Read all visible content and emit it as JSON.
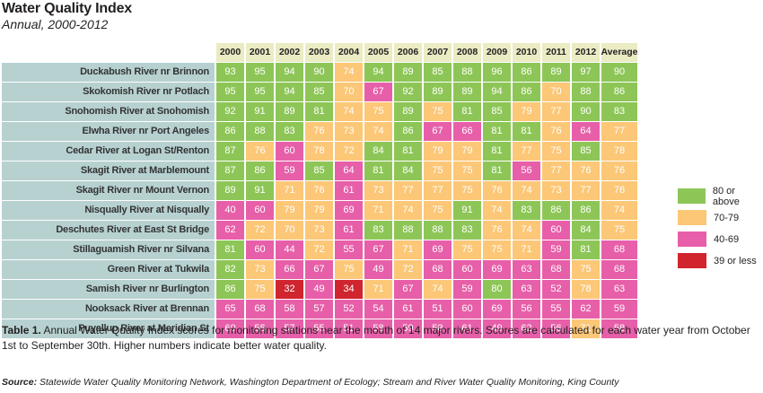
{
  "title": "Water Quality Index",
  "subtitle": "Annual, 2000-2012",
  "colors": {
    "good": "#8dc657",
    "fair": "#fcc777",
    "poor": "#e75fa9",
    "bad": "#d0252f"
  },
  "legend": [
    {
      "label": "80 or above",
      "key": "good"
    },
    {
      "label": "70-79",
      "key": "fair"
    },
    {
      "label": "40-69",
      "key": "poor"
    },
    {
      "label": "39 or less",
      "key": "bad"
    }
  ],
  "caption": {
    "label": "Table 1.",
    "text": " Annual Water Quality Index scores for monitoring stations near the mouth of 14 major rivers. Scores are calculated for each water year from October 1st to September 30th. Higher numbers indicate better water quality."
  },
  "source": {
    "label": "Source:",
    "text": " Statewide Water Quality Monitoring Network, Washington Department of Ecology; Stream and River Water Quality Monitoring, King County"
  },
  "chart_data": {
    "type": "heatmap",
    "columns": [
      "2000",
      "2001",
      "2002",
      "2003",
      "2004",
      "2005",
      "2006",
      "2007",
      "2008",
      "2009",
      "2010",
      "2011",
      "2012",
      "Average"
    ],
    "rows": [
      {
        "name": "Duckabush River nr Brinnon",
        "values": [
          93,
          95,
          94,
          90,
          74,
          94,
          89,
          85,
          88,
          96,
          86,
          89,
          97,
          90
        ]
      },
      {
        "name": "Skokomish River nr Potlach",
        "values": [
          95,
          95,
          94,
          85,
          70,
          67,
          92,
          89,
          89,
          94,
          86,
          70,
          88,
          86
        ]
      },
      {
        "name": "Snohomish River at Snohomish",
        "values": [
          92,
          91,
          89,
          81,
          74,
          75,
          89,
          75,
          81,
          85,
          79,
          77,
          90,
          83
        ]
      },
      {
        "name": "Elwha River nr Port Angeles",
        "values": [
          86,
          88,
          83,
          76,
          73,
          74,
          86,
          67,
          66,
          81,
          81,
          76,
          64,
          77
        ]
      },
      {
        "name": "Cedar River at Logan St/Renton",
        "values": [
          87,
          76,
          60,
          78,
          72,
          84,
          81,
          79,
          79,
          81,
          77,
          75,
          85,
          78
        ]
      },
      {
        "name": "Skagit River at Marblemount",
        "values": [
          87,
          86,
          59,
          85,
          64,
          81,
          84,
          75,
          75,
          81,
          56,
          77,
          76,
          76
        ]
      },
      {
        "name": "Skagit River nr Mount Vernon",
        "values": [
          89,
          91,
          71,
          76,
          61,
          73,
          77,
          77,
          75,
          76,
          74,
          73,
          77,
          76
        ]
      },
      {
        "name": "Nisqually River at Nisqually",
        "values": [
          40,
          60,
          79,
          79,
          69,
          71,
          74,
          75,
          91,
          74,
          83,
          86,
          86,
          74
        ]
      },
      {
        "name": "Deschutes River at East St Bridge",
        "values": [
          62,
          72,
          70,
          73,
          61,
          83,
          88,
          88,
          83,
          76,
          74,
          60,
          84,
          75
        ]
      },
      {
        "name": "Stillaguamish River nr Silvana",
        "values": [
          81,
          60,
          44,
          72,
          55,
          67,
          71,
          69,
          75,
          75,
          71,
          59,
          81,
          68
        ]
      },
      {
        "name": "Green River at Tukwila",
        "values": [
          82,
          73,
          66,
          67,
          75,
          49,
          72,
          68,
          60,
          69,
          63,
          68,
          75,
          68
        ]
      },
      {
        "name": "Samish River nr Burlington",
        "values": [
          86,
          75,
          32,
          49,
          34,
          71,
          67,
          74,
          59,
          80,
          63,
          52,
          78,
          63
        ]
      },
      {
        "name": "Nooksack River at Brennan",
        "values": [
          65,
          68,
          58,
          57,
          52,
          54,
          61,
          51,
          60,
          69,
          56,
          55,
          62,
          59
        ]
      },
      {
        "name": "Puyallup River at Meridian St",
        "values": [
          60,
          58,
          57,
          55,
          51,
          58,
          59,
          58,
          61,
          49,
          62,
          56,
          71,
          58
        ]
      }
    ],
    "color_scale": [
      {
        "min": 80,
        "key": "good"
      },
      {
        "min": 70,
        "key": "fair"
      },
      {
        "min": 40,
        "key": "poor"
      },
      {
        "min": 0,
        "key": "bad"
      }
    ]
  }
}
